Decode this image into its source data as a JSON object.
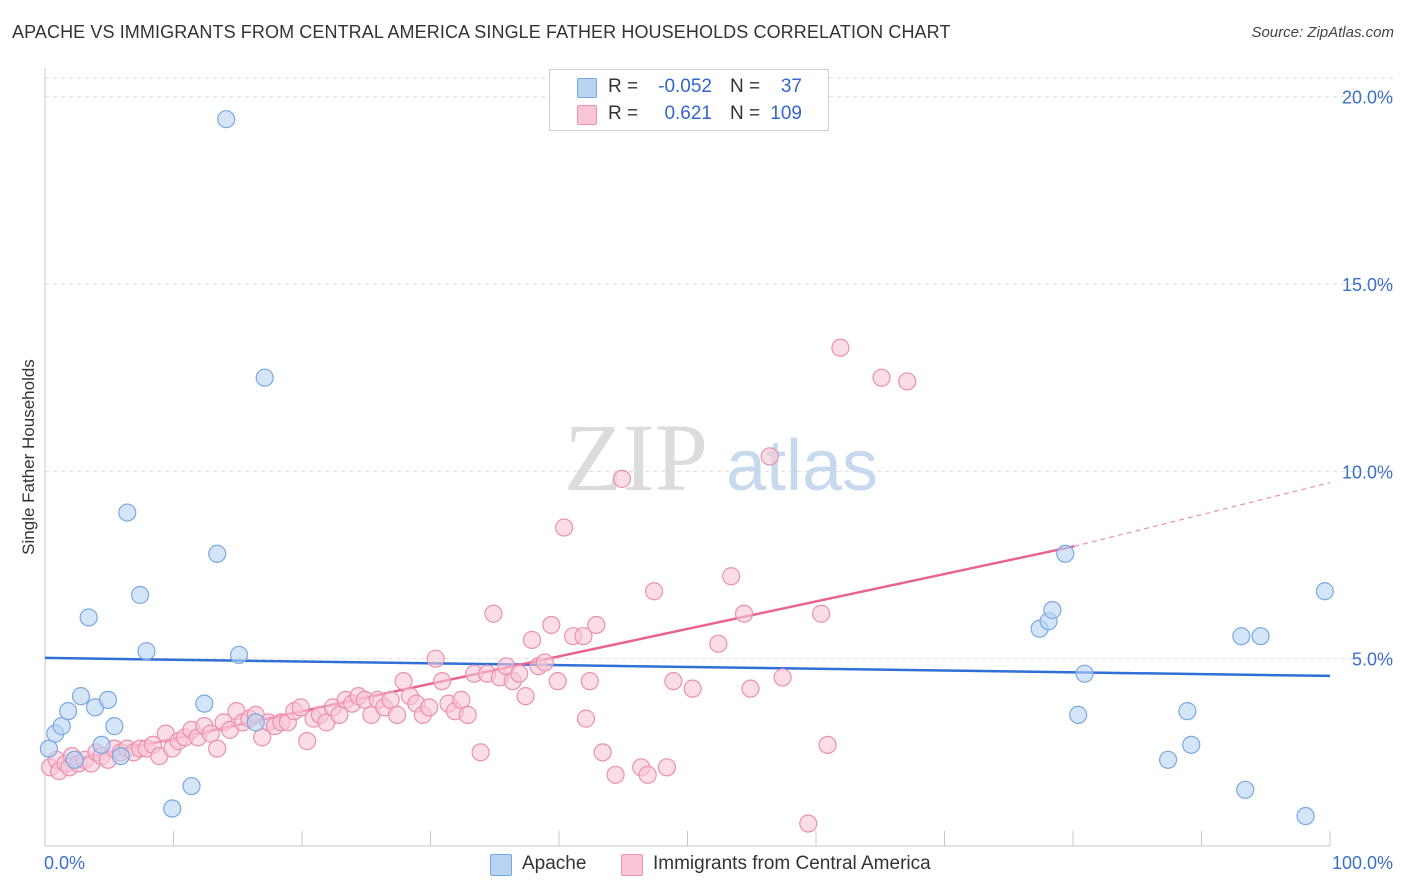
{
  "header": {
    "title": "APACHE VS IMMIGRANTS FROM CENTRAL AMERICA SINGLE FATHER HOUSEHOLDS CORRELATION CHART",
    "source": "Source: ZipAtlas.com"
  },
  "watermark": {
    "zip": "ZIP",
    "atlas": "atlas"
  },
  "legend": {
    "rows": [
      {
        "r_label": "R =",
        "r_value": "-0.052",
        "n_label": "N =",
        "n_value": "37"
      },
      {
        "r_label": "R =",
        "r_value": "0.621",
        "n_label": "N =",
        "n_value": "109"
      }
    ]
  },
  "bottom_legend": {
    "series1": "Apache",
    "series2": "Immigrants from Central America"
  },
  "colors": {
    "apache_fill": "#b9d3f3",
    "apache_stroke": "#7aa8e0",
    "apache_line": "#2f6fd6",
    "central_fill": "#f8c6d6",
    "central_stroke": "#ec8fb0",
    "central_line": "#e8648f",
    "axis_text": "#3b6fc8",
    "grid": "#dddddd"
  },
  "chart_data": {
    "type": "scatter",
    "title": "APACHE VS IMMIGRANTS FROM CENTRAL AMERICA SINGLE FATHER HOUSEHOLDS CORRELATION CHART",
    "xlabel": "",
    "ylabel": "Single Father Households",
    "xlim": [
      0,
      100
    ],
    "ylim": [
      0,
      20.5
    ],
    "x_tick_labels": [
      "0.0%",
      "100.0%"
    ],
    "y_ticks": [
      5,
      10,
      15,
      20
    ],
    "y_tick_labels": [
      "5.0%",
      "10.0%",
      "15.0%",
      "20.0%"
    ],
    "grid": true,
    "legend_position": "top-center",
    "series": [
      {
        "name": "Apache",
        "r": -0.052,
        "n": 37,
        "trend": {
          "x": [
            0,
            100
          ],
          "y": [
            5.02,
            4.54
          ]
        },
        "points": [
          [
            0.3,
            2.6
          ],
          [
            0.8,
            3.0
          ],
          [
            1.3,
            3.2
          ],
          [
            1.8,
            3.6
          ],
          [
            2.3,
            2.3
          ],
          [
            2.8,
            4.0
          ],
          [
            3.4,
            6.1
          ],
          [
            3.9,
            3.7
          ],
          [
            4.4,
            2.7
          ],
          [
            4.9,
            3.9
          ],
          [
            5.4,
            3.2
          ],
          [
            5.9,
            2.4
          ],
          [
            6.4,
            8.9
          ],
          [
            7.4,
            6.7
          ],
          [
            7.9,
            5.2
          ],
          [
            9.9,
            1.0
          ],
          [
            11.4,
            1.6
          ],
          [
            12.4,
            3.8
          ],
          [
            13.4,
            7.8
          ],
          [
            14.1,
            19.4
          ],
          [
            15.1,
            5.1
          ],
          [
            16.4,
            3.3
          ],
          [
            17.1,
            12.5
          ],
          [
            79.4,
            7.8
          ],
          [
            77.4,
            5.8
          ],
          [
            78.1,
            6.0
          ],
          [
            78.4,
            6.3
          ],
          [
            80.9,
            4.6
          ],
          [
            80.4,
            3.5
          ],
          [
            87.4,
            2.3
          ],
          [
            88.9,
            3.6
          ],
          [
            89.2,
            2.7
          ],
          [
            93.1,
            5.6
          ],
          [
            94.6,
            5.6
          ],
          [
            93.4,
            1.5
          ],
          [
            98.1,
            0.8
          ],
          [
            99.6,
            6.8
          ]
        ]
      },
      {
        "name": "Immigrants from Central America",
        "r": 0.621,
        "n": 109,
        "trend": {
          "x": [
            2.3,
            80.1
          ],
          "y": [
            2.3,
            8.0
          ]
        },
        "trend_dashed": {
          "x": [
            80.1,
            100
          ],
          "y": [
            8.0,
            9.7
          ]
        },
        "points": [
          [
            0.4,
            2.1
          ],
          [
            0.9,
            2.3
          ],
          [
            1.1,
            2.0
          ],
          [
            1.6,
            2.2
          ],
          [
            1.9,
            2.1
          ],
          [
            2.1,
            2.4
          ],
          [
            2.6,
            2.2
          ],
          [
            3.1,
            2.3
          ],
          [
            3.6,
            2.2
          ],
          [
            4.0,
            2.5
          ],
          [
            4.4,
            2.4
          ],
          [
            4.9,
            2.3
          ],
          [
            5.4,
            2.6
          ],
          [
            5.9,
            2.5
          ],
          [
            6.4,
            2.6
          ],
          [
            6.9,
            2.5
          ],
          [
            7.4,
            2.6
          ],
          [
            7.9,
            2.6
          ],
          [
            8.4,
            2.7
          ],
          [
            8.9,
            2.4
          ],
          [
            9.4,
            3.0
          ],
          [
            9.9,
            2.6
          ],
          [
            10.4,
            2.8
          ],
          [
            10.9,
            2.9
          ],
          [
            11.4,
            3.1
          ],
          [
            11.9,
            2.9
          ],
          [
            12.4,
            3.2
          ],
          [
            12.9,
            3.0
          ],
          [
            13.4,
            2.6
          ],
          [
            13.9,
            3.3
          ],
          [
            14.4,
            3.1
          ],
          [
            14.9,
            3.6
          ],
          [
            15.4,
            3.3
          ],
          [
            15.9,
            3.4
          ],
          [
            16.4,
            3.5
          ],
          [
            16.9,
            2.9
          ],
          [
            17.4,
            3.3
          ],
          [
            17.9,
            3.2
          ],
          [
            18.4,
            3.3
          ],
          [
            18.9,
            3.3
          ],
          [
            19.4,
            3.6
          ],
          [
            19.9,
            3.7
          ],
          [
            20.4,
            2.8
          ],
          [
            20.9,
            3.4
          ],
          [
            21.4,
            3.5
          ],
          [
            21.9,
            3.3
          ],
          [
            22.4,
            3.7
          ],
          [
            22.9,
            3.5
          ],
          [
            23.4,
            3.9
          ],
          [
            23.9,
            3.8
          ],
          [
            24.4,
            4.0
          ],
          [
            24.9,
            3.9
          ],
          [
            25.4,
            3.5
          ],
          [
            25.9,
            3.9
          ],
          [
            26.4,
            3.7
          ],
          [
            26.9,
            3.9
          ],
          [
            27.4,
            3.5
          ],
          [
            27.9,
            4.4
          ],
          [
            28.4,
            4.0
          ],
          [
            28.9,
            3.8
          ],
          [
            29.4,
            3.5
          ],
          [
            29.9,
            3.7
          ],
          [
            30.4,
            5.0
          ],
          [
            30.9,
            4.4
          ],
          [
            31.4,
            3.8
          ],
          [
            31.9,
            3.6
          ],
          [
            32.4,
            3.9
          ],
          [
            32.9,
            3.5
          ],
          [
            33.4,
            4.6
          ],
          [
            33.9,
            2.5
          ],
          [
            34.4,
            4.6
          ],
          [
            34.9,
            6.2
          ],
          [
            35.4,
            4.5
          ],
          [
            35.9,
            4.8
          ],
          [
            36.4,
            4.4
          ],
          [
            36.9,
            4.6
          ],
          [
            37.4,
            4.0
          ],
          [
            37.9,
            5.5
          ],
          [
            38.4,
            4.8
          ],
          [
            38.9,
            4.9
          ],
          [
            39.4,
            5.9
          ],
          [
            39.9,
            4.4
          ],
          [
            40.4,
            8.5
          ],
          [
            41.1,
            5.6
          ],
          [
            41.9,
            5.6
          ],
          [
            42.1,
            3.4
          ],
          [
            42.4,
            4.4
          ],
          [
            42.9,
            5.9
          ],
          [
            43.4,
            2.5
          ],
          [
            44.9,
            9.8
          ],
          [
            44.4,
            1.9
          ],
          [
            46.4,
            2.1
          ],
          [
            46.9,
            1.9
          ],
          [
            47.4,
            6.8
          ],
          [
            48.4,
            2.1
          ],
          [
            48.9,
            4.4
          ],
          [
            50.4,
            4.2
          ],
          [
            52.4,
            5.4
          ],
          [
            53.4,
            7.2
          ],
          [
            54.4,
            6.2
          ],
          [
            54.9,
            4.2
          ],
          [
            56.4,
            10.4
          ],
          [
            57.4,
            4.5
          ],
          [
            59.4,
            0.6
          ],
          [
            60.4,
            6.2
          ],
          [
            60.9,
            2.7
          ],
          [
            61.9,
            13.3
          ],
          [
            65.1,
            12.5
          ],
          [
            67.1,
            12.4
          ]
        ]
      }
    ]
  }
}
